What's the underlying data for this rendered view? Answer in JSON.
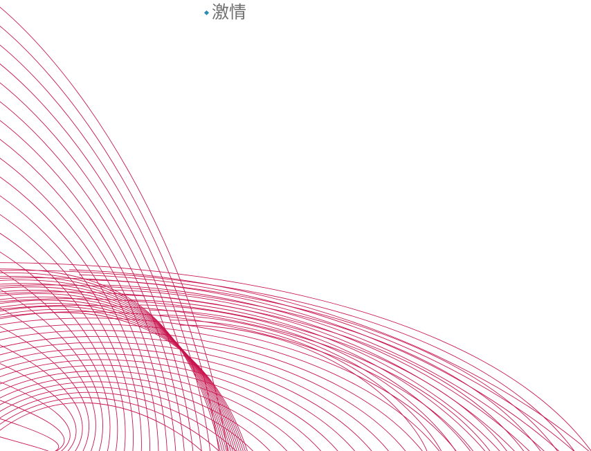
{
  "slide": {
    "bullet": {
      "icon": "diamond-bullet-icon",
      "text": "激情"
    }
  },
  "colors": {
    "background": "#ffffff",
    "curve_stroke": "#c8144e",
    "bullet_accent": "#2a8bb3",
    "text": "#6f6f6f"
  },
  "decoration": {
    "icon": "wave-lines-pattern",
    "line_families": 2
  }
}
